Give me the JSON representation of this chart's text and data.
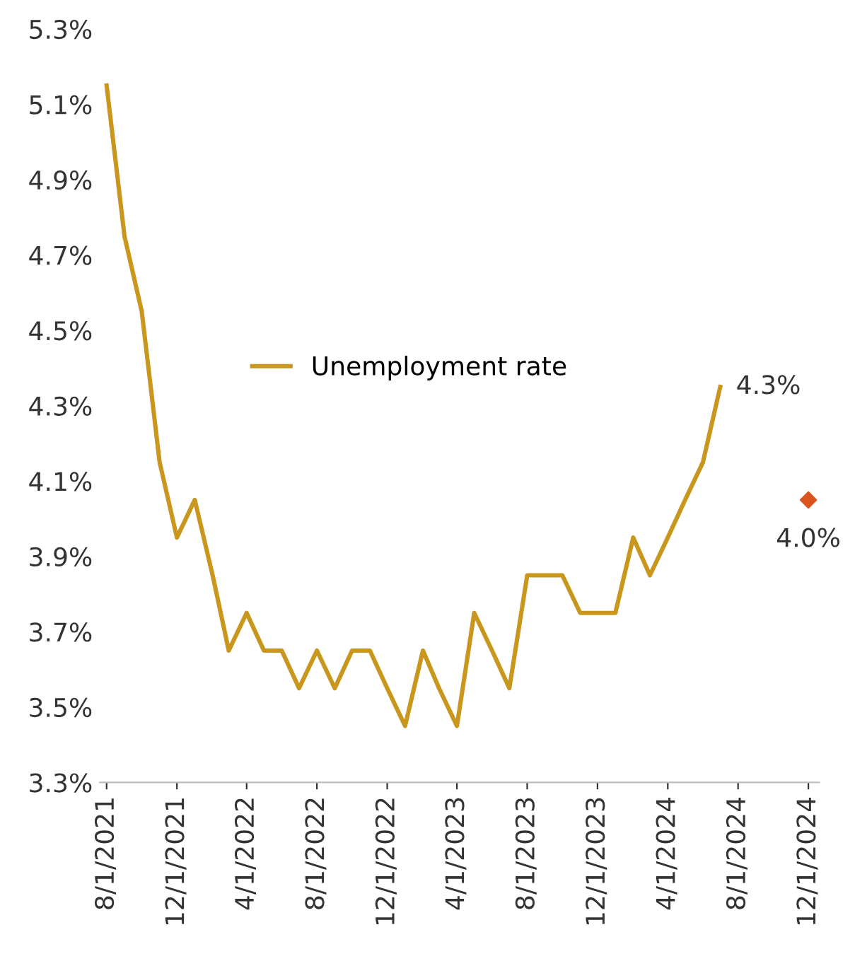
{
  "chart_data": {
    "type": "line",
    "x": [
      "2021-08-01",
      "2021-09-01",
      "2021-10-01",
      "2021-11-01",
      "2021-12-01",
      "2022-01-01",
      "2022-02-01",
      "2022-03-01",
      "2022-04-01",
      "2022-05-01",
      "2022-06-01",
      "2022-07-01",
      "2022-08-01",
      "2022-09-01",
      "2022-10-01",
      "2022-11-01",
      "2022-12-01",
      "2023-01-01",
      "2023-02-01",
      "2023-03-01",
      "2023-04-01",
      "2023-05-01",
      "2023-06-01",
      "2023-07-01",
      "2023-08-01",
      "2023-09-01",
      "2023-10-01",
      "2023-11-01",
      "2023-12-01",
      "2024-01-01",
      "2024-02-01",
      "2024-03-01",
      "2024-04-01",
      "2024-05-01",
      "2024-06-01",
      "2024-07-01"
    ],
    "series": [
      {
        "name": "Unemployment rate",
        "color": "#c9971e",
        "values": [
          5.1,
          4.7,
          4.5,
          4.1,
          3.9,
          4.0,
          3.8,
          3.6,
          3.7,
          3.6,
          3.6,
          3.5,
          3.6,
          3.5,
          3.6,
          3.6,
          3.5,
          3.4,
          3.6,
          3.5,
          3.4,
          3.7,
          3.6,
          3.5,
          3.8,
          3.8,
          3.8,
          3.7,
          3.7,
          3.7,
          3.9,
          3.8,
          3.9,
          4.0,
          4.1,
          4.3
        ],
        "value_labels": [
          null,
          null,
          null,
          null,
          null,
          null,
          null,
          null,
          null,
          null,
          null,
          null,
          null,
          null,
          null,
          null,
          null,
          null,
          null,
          null,
          null,
          null,
          null,
          null,
          null,
          null,
          null,
          null,
          null,
          null,
          null,
          null,
          null,
          null,
          null,
          "4.3%"
        ]
      },
      {
        "type": "scatter",
        "marker": "diamond",
        "color": "#d9541e",
        "x": [
          "2024-12-01"
        ],
        "values": [
          4.0
        ],
        "value_labels": [
          "4.0%"
        ]
      }
    ],
    "ylim": [
      3.25,
      5.25
    ],
    "yticks": [
      {
        "value": 3.25,
        "label": "3.3%"
      },
      {
        "value": 3.45,
        "label": "3.5%"
      },
      {
        "value": 3.65,
        "label": "3.7%"
      },
      {
        "value": 3.85,
        "label": "3.9%"
      },
      {
        "value": 4.05,
        "label": "4.1%"
      },
      {
        "value": 4.25,
        "label": "4.3%"
      },
      {
        "value": 4.45,
        "label": "4.5%"
      },
      {
        "value": 4.65,
        "label": "4.7%"
      },
      {
        "value": 4.85,
        "label": "4.9%"
      },
      {
        "value": 5.05,
        "label": "5.1%"
      },
      {
        "value": 5.25,
        "label": "5.3%"
      }
    ],
    "xlim": [
      "2021-07-20",
      "2024-12-20"
    ],
    "xticks": [
      {
        "value": "2021-08-01",
        "label": "8/1/2021"
      },
      {
        "value": "2021-12-01",
        "label": "12/1/2021"
      },
      {
        "value": "2022-04-01",
        "label": "4/1/2022"
      },
      {
        "value": "2022-08-01",
        "label": "8/1/2022"
      },
      {
        "value": "2022-12-01",
        "label": "12/1/2022"
      },
      {
        "value": "2023-04-01",
        "label": "4/1/2023"
      },
      {
        "value": "2023-08-01",
        "label": "8/1/2023"
      },
      {
        "value": "2023-12-01",
        "label": "12/1/2023"
      },
      {
        "value": "2024-04-01",
        "label": "4/1/2024"
      },
      {
        "value": "2024-08-01",
        "label": "8/1/2024"
      },
      {
        "value": "2024-12-01",
        "label": "12/1/2024"
      }
    ],
    "grid": false,
    "legend": "center left"
  }
}
